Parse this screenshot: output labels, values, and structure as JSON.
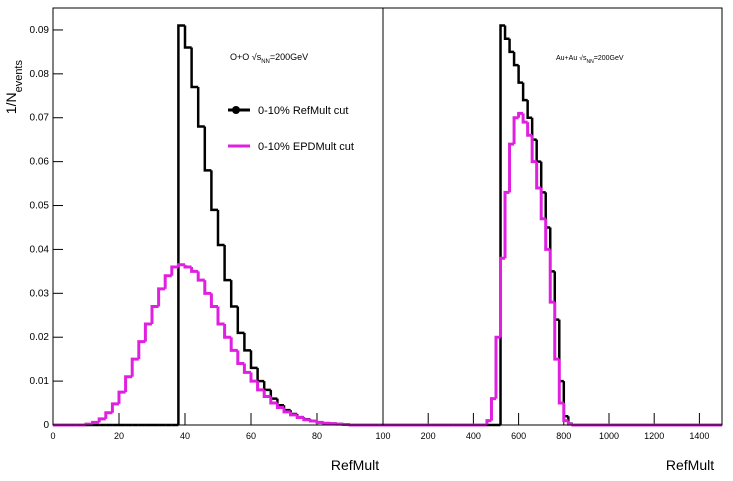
{
  "chart_data": [
    {
      "type": "histogram",
      "ylabel": [
        "1/N",
        "events"
      ],
      "xlabel": "RefMult",
      "annotation": [
        "O+O √s",
        "NN",
        "=200GeV"
      ],
      "xlim": [
        0,
        100
      ],
      "ylim": [
        0,
        0.095
      ],
      "xticks": [
        0,
        20,
        40,
        60,
        80,
        100
      ],
      "yticks": [
        0,
        0.01,
        0.02,
        0.03,
        0.04,
        0.05,
        0.06,
        0.07,
        0.08,
        0.09
      ],
      "bins": [
        0,
        2,
        4,
        6,
        8,
        10,
        12,
        14,
        16,
        18,
        20,
        22,
        24,
        26,
        28,
        30,
        32,
        34,
        36,
        38,
        40,
        42,
        44,
        46,
        48,
        50,
        52,
        54,
        56,
        58,
        60,
        62,
        64,
        66,
        68,
        70,
        72,
        74,
        76,
        78,
        80,
        82,
        84,
        86,
        88,
        90,
        92,
        94,
        96,
        98,
        100
      ],
      "series": [
        {
          "name": "0-10% RefMult cut",
          "color": "#000000",
          "values": [
            0,
            0,
            0,
            0,
            0,
            0,
            0,
            0,
            0,
            0,
            0,
            0,
            0,
            0,
            0,
            0,
            0,
            0,
            0,
            0.091,
            0.086,
            0.077,
            0.068,
            0.058,
            0.049,
            0.041,
            0.033,
            0.027,
            0.021,
            0.017,
            0.013,
            0.01,
            0.008,
            0.006,
            0.0045,
            0.0034,
            0.0025,
            0.0018,
            0.0013,
            0.0009,
            0.0006,
            0.0004,
            0.0003,
            0.0002,
            0.0001,
            0,
            0,
            0,
            0,
            0
          ]
        },
        {
          "name": "0-10% EPDMult cut",
          "color": "#e020e0",
          "values": [
            0,
            0,
            0,
            0,
            0,
            0.0002,
            0.0006,
            0.0014,
            0.0028,
            0.0048,
            0.0075,
            0.011,
            0.015,
            0.019,
            0.023,
            0.027,
            0.031,
            0.034,
            0.036,
            0.0365,
            0.036,
            0.035,
            0.033,
            0.03,
            0.027,
            0.023,
            0.02,
            0.017,
            0.014,
            0.012,
            0.01,
            0.008,
            0.0065,
            0.005,
            0.004,
            0.003,
            0.0023,
            0.0017,
            0.0012,
            0.0009,
            0.0006,
            0.0004,
            0.0003,
            0.0002,
            0.0001,
            0,
            0,
            0,
            0,
            0
          ]
        }
      ]
    },
    {
      "type": "histogram",
      "xlabel": "RefMult",
      "annotation": [
        "Au+Au √s",
        "NN",
        "=200GeV"
      ],
      "xlim": [
        0,
        1500
      ],
      "ylim": [
        0,
        0.095
      ],
      "xticks": [
        200,
        400,
        600,
        800,
        1000,
        1200,
        1400
      ],
      "bins": [
        0,
        20,
        40,
        60,
        80,
        100,
        120,
        140,
        160,
        180,
        200,
        220,
        240,
        260,
        280,
        300,
        320,
        340,
        360,
        380,
        400,
        420,
        440,
        460,
        480,
        500,
        520,
        540,
        560,
        580,
        600,
        620,
        640,
        660,
        680,
        700,
        720,
        740,
        760,
        780,
        800,
        820,
        840,
        860,
        880,
        900,
        920,
        940,
        960,
        980,
        1000,
        1020,
        1040,
        1060,
        1080,
        1100,
        1120,
        1140,
        1160,
        1180,
        1200,
        1220,
        1240,
        1260,
        1280,
        1300,
        1320,
        1340,
        1360,
        1380,
        1400,
        1420,
        1440,
        1460,
        1480,
        1500
      ],
      "series": [
        {
          "color": "#000000",
          "values": [
            0,
            0,
            0,
            0,
            0,
            0,
            0,
            0,
            0,
            0,
            0,
            0,
            0,
            0,
            0,
            0,
            0,
            0,
            0,
            0,
            0,
            0,
            0,
            0,
            0,
            0,
            0.091,
            0.088,
            0.085,
            0.082,
            0.078,
            0.074,
            0.07,
            0.065,
            0.06,
            0.053,
            0.045,
            0.035,
            0.024,
            0.01,
            0.002,
            0.0003,
            0,
            0,
            0,
            0,
            0,
            0,
            0,
            0,
            0,
            0,
            0,
            0,
            0,
            0,
            0,
            0,
            0,
            0,
            0,
            0,
            0,
            0,
            0,
            0,
            0,
            0,
            0,
            0,
            0,
            0,
            0,
            0,
            0
          ]
        },
        {
          "color": "#e020e0",
          "values": [
            0,
            0,
            0,
            0,
            0,
            0,
            0,
            0,
            0,
            0,
            0,
            0,
            0,
            0,
            0,
            0,
            0,
            0,
            0,
            0,
            0,
            0,
            0,
            0.001,
            0.006,
            0.02,
            0.038,
            0.053,
            0.064,
            0.07,
            0.071,
            0.069,
            0.066,
            0.06,
            0.054,
            0.047,
            0.04,
            0.028,
            0.015,
            0.005,
            0.001,
            0.0002,
            0,
            0,
            0,
            0,
            0,
            0,
            0,
            0,
            0,
            0,
            0,
            0,
            0,
            0,
            0,
            0,
            0,
            0,
            0,
            0,
            0,
            0,
            0,
            0,
            0,
            0,
            0,
            0,
            0,
            0,
            0,
            0,
            0
          ]
        }
      ]
    }
  ]
}
